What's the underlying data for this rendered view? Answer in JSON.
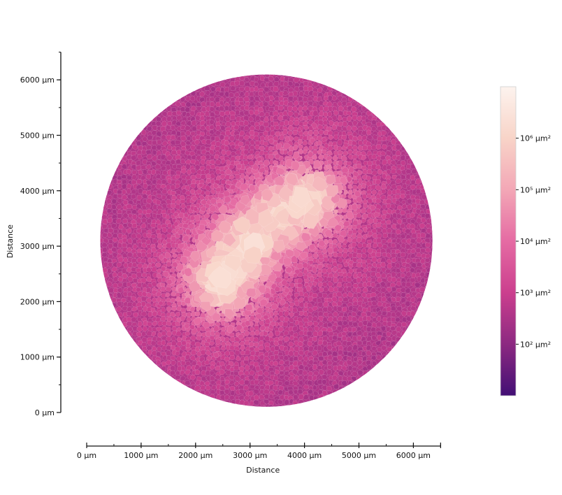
{
  "chart_data": {
    "type": "heatmap",
    "description_kind": "voronoi-cell-area-map",
    "xlabel": "Distance",
    "ylabel": "Distance",
    "x_axis": {
      "range": [
        0,
        6500
      ],
      "ticks": [
        0,
        1000,
        2000,
        3000,
        4000,
        5000,
        6000
      ],
      "tick_labels": [
        "0 µm",
        "1000 µm",
        "2000 µm",
        "3000 µm",
        "4000 µm",
        "5000 µm",
        "6000 µm"
      ],
      "minor_step": 500
    },
    "y_axis": {
      "range": [
        0,
        6500
      ],
      "ticks": [
        0,
        1000,
        2000,
        3000,
        4000,
        5000,
        6000
      ],
      "tick_labels": [
        "0 µm",
        "1000 µm",
        "2000 µm",
        "3000 µm",
        "4000 µm",
        "5000 µm",
        "6000 µm"
      ],
      "minor_step": 500
    },
    "region": {
      "shape": "circle",
      "center": [
        3300,
        3100
      ],
      "radius": 3050
    },
    "high_area_cluster": {
      "centers": [
        [
          4000,
          3800
        ],
        [
          3500,
          3500
        ],
        [
          3000,
          3100
        ],
        [
          2700,
          2700
        ],
        [
          2500,
          2400
        ]
      ],
      "peak_area": 1500000
    },
    "colorbar": {
      "scale": "log",
      "range": [
        10,
        10000000
      ],
      "ticks": [
        100,
        1000,
        10000,
        100000,
        1000000
      ],
      "tick_labels": [
        "10² µm²",
        "10³ µm²",
        "10⁴ µm²",
        "10⁵ µm²",
        "10⁶ µm²"
      ],
      "colormap": [
        "#430f75",
        "#8c2981",
        "#cb3f8e",
        "#e56ba3",
        "#f3a7b6",
        "#f8d4c8",
        "#fdf3ee"
      ]
    },
    "grid": false,
    "legend": "colorbar-right"
  }
}
